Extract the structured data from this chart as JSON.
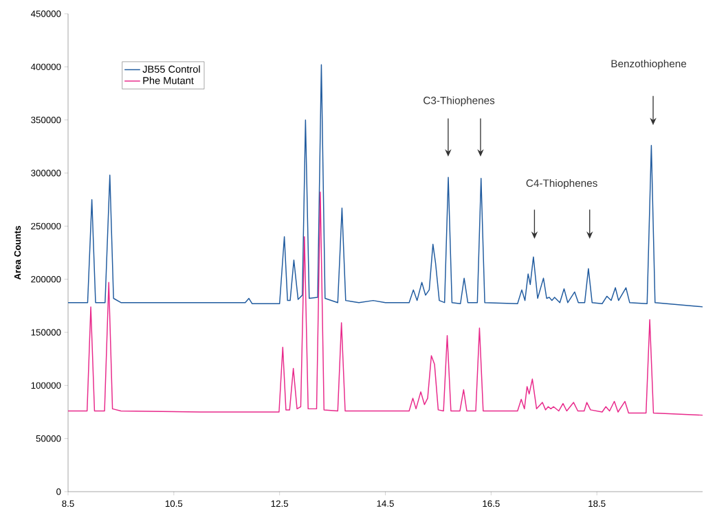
{
  "chart_data": {
    "type": "line",
    "ylabel": "Area Counts",
    "xlim": [
      8.5,
      20.5
    ],
    "xticks": [
      8.5,
      10.5,
      12.5,
      14.5,
      16.5,
      18.5
    ],
    "ylim": [
      0,
      450000
    ],
    "yticks": [
      0,
      50000,
      100000,
      150000,
      200000,
      250000,
      300000,
      350000,
      400000,
      450000
    ],
    "legend": "top left",
    "grid": false,
    "marker": "none",
    "line_style": "solid",
    "series": [
      {
        "name": "JB55 Control",
        "color": "#1f5a9e",
        "x": [
          8.5,
          8.87,
          8.95,
          9.02,
          9.2,
          9.29,
          9.36,
          9.5,
          10.5,
          11.85,
          11.92,
          11.98,
          12.5,
          12.59,
          12.65,
          12.7,
          12.77,
          12.85,
          12.93,
          12.99,
          13.06,
          13.22,
          13.29,
          13.36,
          13.6,
          13.68,
          13.75,
          14.0,
          14.27,
          14.5,
          14.95,
          15.03,
          15.1,
          15.19,
          15.26,
          15.33,
          15.4,
          15.45,
          15.52,
          15.62,
          15.69,
          15.76,
          15.92,
          15.99,
          16.06,
          16.24,
          16.31,
          16.38,
          17.0,
          17.08,
          17.14,
          17.2,
          17.24,
          17.3,
          17.38,
          17.49,
          17.55,
          17.6,
          17.65,
          17.7,
          17.8,
          17.88,
          17.95,
          18.08,
          18.15,
          18.27,
          18.34,
          18.41,
          18.6,
          18.69,
          18.77,
          18.85,
          18.91,
          19.05,
          19.12,
          19.45,
          19.53,
          19.6,
          20.5
        ],
        "values": [
          178000,
          178000,
          275000,
          178000,
          178000,
          298000,
          182000,
          178000,
          178000,
          178000,
          182000,
          177000,
          177000,
          240000,
          180000,
          180000,
          218000,
          181000,
          185000,
          350000,
          182000,
          183000,
          402000,
          182000,
          178000,
          267000,
          180000,
          178000,
          180000,
          178000,
          178000,
          190000,
          180000,
          197000,
          185000,
          190000,
          233000,
          215000,
          180000,
          178000,
          296000,
          178000,
          177000,
          201000,
          178000,
          178000,
          295000,
          178000,
          177000,
          190000,
          180000,
          205000,
          195000,
          221000,
          182000,
          201000,
          182000,
          183000,
          180000,
          183000,
          178000,
          191000,
          178000,
          188000,
          178000,
          178000,
          210000,
          178000,
          177000,
          184000,
          180000,
          192000,
          180000,
          192000,
          178000,
          177000,
          326000,
          178000,
          174000
        ]
      },
      {
        "name": "Phe Mutant",
        "color": "#e8288a",
        "x": [
          8.5,
          8.86,
          8.93,
          9.0,
          9.19,
          9.27,
          9.34,
          9.5,
          11.0,
          12.49,
          12.56,
          12.62,
          12.69,
          12.76,
          12.83,
          12.9,
          12.97,
          13.04,
          13.2,
          13.27,
          13.34,
          13.6,
          13.67,
          13.74,
          14.3,
          14.95,
          15.02,
          15.08,
          15.17,
          15.24,
          15.3,
          15.37,
          15.43,
          15.5,
          15.6,
          15.67,
          15.74,
          15.91,
          15.98,
          16.04,
          16.21,
          16.28,
          16.35,
          17.0,
          17.07,
          17.13,
          17.18,
          17.22,
          17.28,
          17.36,
          17.47,
          17.53,
          17.58,
          17.63,
          17.68,
          17.78,
          17.86,
          17.93,
          18.06,
          18.14,
          18.26,
          18.31,
          18.38,
          18.6,
          18.67,
          18.74,
          18.83,
          18.9,
          19.03,
          19.1,
          19.43,
          19.5,
          19.57,
          20.5
        ],
        "values": [
          76000,
          76000,
          174000,
          76000,
          76000,
          197000,
          78000,
          76000,
          75000,
          75000,
          136000,
          77000,
          77000,
          116000,
          78000,
          80000,
          240000,
          78000,
          78000,
          282000,
          77000,
          76000,
          159000,
          76000,
          76000,
          76000,
          88000,
          78000,
          94000,
          82000,
          88000,
          128000,
          120000,
          77000,
          76000,
          147000,
          76000,
          76000,
          96000,
          76000,
          76000,
          154000,
          76000,
          76000,
          87000,
          78000,
          99000,
          92000,
          106000,
          78000,
          84000,
          77000,
          80000,
          78000,
          80000,
          76000,
          83000,
          76000,
          84000,
          76000,
          76000,
          84000,
          77000,
          75000,
          80000,
          76000,
          85000,
          75000,
          85000,
          74000,
          74000,
          162000,
          74000,
          72000
        ]
      }
    ],
    "annotations": [
      "C3-Thiophenes",
      "C4-Thiophenes",
      "Benzothiophene"
    ]
  }
}
